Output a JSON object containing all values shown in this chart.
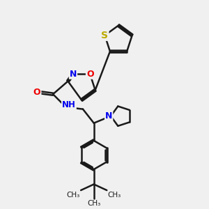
{
  "background_color": "#f0f0f0",
  "bond_color": "#1a1a1a",
  "bond_width": 1.8,
  "atom_colors": {
    "N": "#0000EE",
    "O": "#EE0000",
    "S": "#BBAA00",
    "C": "#1a1a1a"
  },
  "font_size": 9,
  "figsize": [
    3.0,
    3.0
  ],
  "dpi": 100,
  "xlim": [
    0,
    10
  ],
  "ylim": [
    0,
    10
  ]
}
